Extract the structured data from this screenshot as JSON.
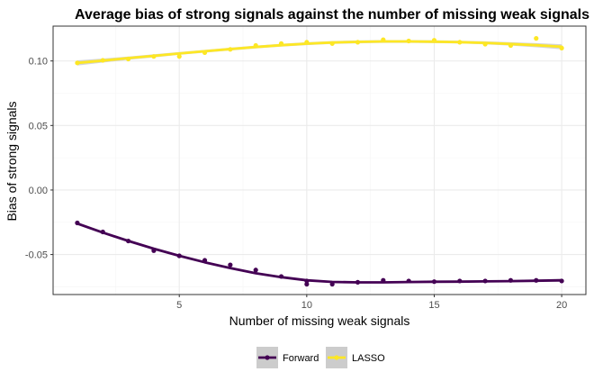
{
  "chart_data": {
    "type": "scatter",
    "title": "Average bias of strong signals against the number of missing weak signals",
    "xlabel": "Number of missing weak signals",
    "ylabel": "Bias of strong signals",
    "xlim": [
      0.05,
      20.95
    ],
    "ylim": [
      -0.081,
      0.127
    ],
    "x_ticks": [
      5,
      10,
      15,
      20
    ],
    "x_tick_labels": [
      "5",
      "10",
      "15",
      "20"
    ],
    "y_ticks": [
      -0.05,
      0.0,
      0.05,
      0.1
    ],
    "y_tick_labels": [
      "-0.05",
      "0.00",
      "0.05",
      "0.10"
    ],
    "grid": true,
    "legend_position": "bottom",
    "series": [
      {
        "name": "Forward",
        "color": "#440154",
        "x": [
          1,
          2,
          3,
          4,
          5,
          6,
          7,
          8,
          9,
          10,
          10,
          11,
          12,
          13,
          14,
          15,
          16,
          17,
          18,
          19,
          20
        ],
        "y": [
          -0.0255,
          -0.0325,
          -0.0395,
          -0.047,
          -0.051,
          -0.0545,
          -0.058,
          -0.062,
          -0.067,
          -0.0705,
          -0.073,
          -0.073,
          -0.0715,
          -0.07,
          -0.0705,
          -0.071,
          -0.0705,
          -0.0705,
          -0.07,
          -0.07,
          -0.0705
        ],
        "smooth_x": [
          1,
          2,
          3,
          4,
          5,
          6,
          7,
          8,
          9,
          10,
          11,
          12,
          13,
          14,
          15,
          16,
          17,
          18,
          19,
          20
        ],
        "smooth_y": [
          -0.026,
          -0.033,
          -0.0395,
          -0.0455,
          -0.051,
          -0.056,
          -0.0605,
          -0.0645,
          -0.0675,
          -0.07,
          -0.0712,
          -0.0716,
          -0.0716,
          -0.0713,
          -0.0711,
          -0.071,
          -0.0708,
          -0.0706,
          -0.0703,
          -0.07
        ],
        "smooth_se": [
          0.0012,
          0.0009,
          0.0008,
          0.0007,
          0.0007,
          0.0007,
          0.0007,
          0.0007,
          0.0007,
          0.0007,
          0.0007,
          0.0007,
          0.0007,
          0.0007,
          0.0007,
          0.0007,
          0.0007,
          0.0008,
          0.0009,
          0.0012
        ]
      },
      {
        "name": "LASSO",
        "color": "#FDE725",
        "x": [
          1,
          2,
          3,
          4,
          5,
          6,
          7,
          8,
          9,
          10,
          11,
          12,
          13,
          14,
          15,
          16,
          17,
          18,
          19,
          20
        ],
        "y": [
          0.0985,
          0.1005,
          0.1015,
          0.1035,
          0.1035,
          0.1065,
          0.109,
          0.112,
          0.1135,
          0.1145,
          0.1135,
          0.1145,
          0.1165,
          0.1155,
          0.116,
          0.1145,
          0.113,
          0.112,
          0.1175,
          0.11
        ],
        "smooth_x": [
          1,
          2,
          3,
          4,
          5,
          6,
          7,
          8,
          9,
          10,
          11,
          12,
          13,
          14,
          15,
          16,
          17,
          18,
          19,
          20
        ],
        "smooth_y": [
          0.0985,
          0.1003,
          0.1022,
          0.104,
          0.1058,
          0.1075,
          0.1092,
          0.1108,
          0.1122,
          0.1134,
          0.1143,
          0.1148,
          0.1151,
          0.1151,
          0.1149,
          0.1146,
          0.114,
          0.1132,
          0.1122,
          0.111
        ],
        "smooth_se": [
          0.002,
          0.0016,
          0.0013,
          0.0012,
          0.0011,
          0.0011,
          0.0011,
          0.0011,
          0.0011,
          0.0011,
          0.0011,
          0.0011,
          0.0011,
          0.0011,
          0.0011,
          0.0011,
          0.0012,
          0.0013,
          0.0016,
          0.002
        ]
      }
    ]
  },
  "colors": {
    "panel_border": "#333333",
    "grid_major": "#ebebeb",
    "grid_minor": "#f5f5f5",
    "se_band": "#cccccc"
  }
}
